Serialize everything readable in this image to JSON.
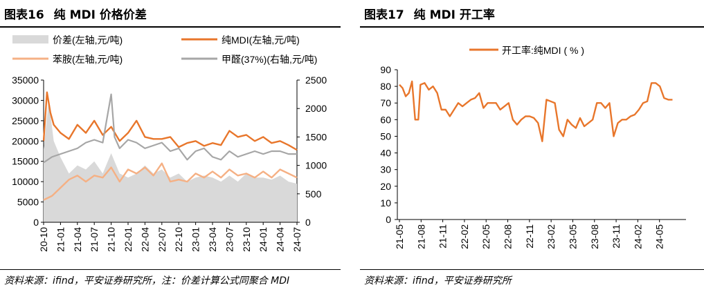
{
  "left": {
    "title_num": "图表16",
    "title_text": "纯 MDI 价格价差",
    "source": "资料来源：ifind，平安证券研究所，注：价差计算公式同聚合 MDI"
  },
  "right": {
    "title_num": "图表17",
    "title_text": "纯 MDI 开工率",
    "source": "资料来源：ifind，平安证券研究所"
  },
  "chart_data": [
    {
      "type": "line",
      "legend_position": "top",
      "x_tick_labels": [
        "20-10",
        "21-01",
        "21-04",
        "21-07",
        "21-10",
        "22-01",
        "22-04",
        "22-07",
        "22-10",
        "23-01",
        "23-04",
        "23-07",
        "23-10",
        "24-01",
        "24-04",
        "24-07"
      ],
      "x_range": [
        "2020-10",
        "2024-07"
      ],
      "y_left": {
        "ticks": [
          "0",
          "5000",
          "10000",
          "15000",
          "20000",
          "25000",
          "30000",
          "35000"
        ],
        "range": [
          0,
          35000
        ]
      },
      "y_right": {
        "ticks": [
          "0",
          "500",
          "1000",
          "1500",
          "2000",
          "2500"
        ],
        "range": [
          0,
          2500
        ]
      },
      "series": [
        {
          "name": "价差(左轴,元/吨)",
          "kind": "area",
          "axis": "left",
          "color": "#d9d9d9",
          "x": [
            0,
            0.3,
            0.6,
            1,
            1.5,
            2,
            2.5,
            3,
            3.5,
            4,
            4.5,
            5,
            5.5,
            6,
            6.5,
            7,
            7.5,
            8,
            8.5,
            9,
            9.5,
            10,
            10.5,
            11,
            11.5,
            12,
            12.5,
            13,
            13.5,
            14,
            14.5,
            15
          ],
          "y": [
            18000,
            30000,
            20000,
            16000,
            12000,
            14000,
            13000,
            15000,
            12000,
            17000,
            12000,
            11000,
            12000,
            14000,
            12000,
            13000,
            11000,
            12000,
            10000,
            11000,
            11500,
            11000,
            10000,
            11500,
            10000,
            12000,
            11000,
            11000,
            10500,
            11500,
            10000,
            9500
          ]
        },
        {
          "name": "纯MDI(左轴,元/吨)",
          "kind": "line",
          "axis": "left",
          "color": "#e8762b",
          "x": [
            0,
            0.2,
            0.4,
            0.6,
            1,
            1.5,
            2,
            2.5,
            3,
            3.5,
            4,
            4.5,
            5,
            5.5,
            6,
            6.5,
            7,
            7.5,
            8,
            8.5,
            9,
            9.5,
            10,
            10.5,
            11,
            11.5,
            12,
            12.5,
            13,
            13.5,
            14,
            14.5,
            15
          ],
          "y": [
            20000,
            32000,
            27000,
            24000,
            22000,
            20500,
            24000,
            22000,
            25000,
            21500,
            23500,
            20000,
            22000,
            25000,
            21000,
            20500,
            20500,
            21000,
            18500,
            19500,
            20000,
            18800,
            19500,
            19000,
            22500,
            21000,
            21500,
            20000,
            21000,
            19500,
            20000,
            19000,
            17800
          ]
        },
        {
          "name": "苯胺(左轴,元/吨)",
          "kind": "line",
          "axis": "left",
          "color": "#f5b084",
          "x": [
            0,
            0.5,
            1,
            1.5,
            2,
            2.5,
            3,
            3.5,
            4,
            4.5,
            5,
            5.5,
            6,
            6.5,
            7,
            7.5,
            8,
            8.5,
            9,
            9.5,
            10,
            10.5,
            11,
            11.5,
            12,
            12.5,
            13,
            13.5,
            14,
            14.5,
            15
          ],
          "y": [
            5500,
            6500,
            8500,
            10500,
            11500,
            10000,
            11500,
            11000,
            13500,
            10000,
            13000,
            12000,
            13500,
            11500,
            14500,
            10000,
            10500,
            10000,
            12000,
            11000,
            12500,
            11000,
            13000,
            11500,
            12000,
            11000,
            12500,
            11000,
            13000,
            12000,
            11000
          ]
        },
        {
          "name": "甲醛(37%)(右轴,元/吨)",
          "kind": "line",
          "axis": "right",
          "color": "#a6a6a6",
          "x": [
            0,
            0.5,
            1,
            1.5,
            2,
            2.5,
            3,
            3.5,
            4,
            4.2,
            4.5,
            5,
            5.5,
            6,
            6.5,
            7,
            7.5,
            8,
            8.5,
            9,
            9.5,
            10,
            10.5,
            11,
            11.5,
            12,
            12.5,
            13,
            13.5,
            14,
            14.5,
            15
          ],
          "y": [
            1050,
            1150,
            1200,
            1250,
            1300,
            1400,
            1450,
            1400,
            2250,
            1500,
            1300,
            1450,
            1400,
            1300,
            1350,
            1400,
            1250,
            1300,
            1100,
            1250,
            1300,
            1150,
            1100,
            1250,
            1150,
            1200,
            1250,
            1200,
            1250,
            1250,
            1200,
            1200
          ]
        }
      ]
    },
    {
      "type": "line",
      "legend_position": "top",
      "x_tick_labels": [
        "21-05",
        "21-08",
        "21-11",
        "22-02",
        "22-05",
        "22-08",
        "22-11",
        "23-02",
        "23-05",
        "23-08",
        "23-11",
        "24-02",
        "24-05"
      ],
      "y": {
        "ticks": [
          "0",
          "10",
          "20",
          "30",
          "40",
          "50",
          "60",
          "70",
          "80",
          "90"
        ],
        "range": [
          0,
          90
        ]
      },
      "series": [
        {
          "name": "开工率:纯MDI ( % )",
          "color": "#e8762b",
          "x": [
            0,
            0.15,
            0.3,
            0.45,
            0.6,
            0.75,
            0.9,
            1.0,
            1.2,
            1.4,
            1.6,
            1.8,
            2.0,
            2.2,
            2.4,
            2.6,
            2.8,
            3.0,
            3.2,
            3.4,
            3.6,
            3.8,
            4.0,
            4.2,
            4.4,
            4.6,
            4.8,
            5.0,
            5.2,
            5.4,
            5.6,
            5.8,
            6.0,
            6.2,
            6.4,
            6.6,
            6.8,
            7.0,
            7.2,
            7.4,
            7.6,
            7.8,
            8.0,
            8.2,
            8.4,
            8.6,
            8.8,
            9.0,
            9.2,
            9.4,
            9.6,
            9.8,
            10.0,
            10.2,
            10.4,
            10.6,
            10.8,
            11.0,
            11.2,
            11.4,
            11.6,
            11.8,
            12.0,
            12.2,
            12.4,
            12.6,
            12.8,
            13.0
          ],
          "y": [
            81,
            79,
            74,
            76,
            83,
            60,
            60,
            81,
            82,
            78,
            80,
            76,
            66,
            66,
            62,
            66,
            70,
            68,
            70,
            72,
            73,
            76,
            67,
            70,
            70,
            70,
            66,
            68,
            70,
            60,
            57,
            60,
            62,
            62,
            61,
            58,
            47,
            72,
            71,
            70,
            54,
            50,
            60,
            57,
            55,
            61,
            56,
            58,
            60,
            70,
            70,
            67,
            70,
            50,
            58,
            60,
            60,
            62,
            63,
            66,
            70,
            71,
            82,
            82,
            80,
            73,
            72,
            72
          ]
        }
      ]
    }
  ]
}
